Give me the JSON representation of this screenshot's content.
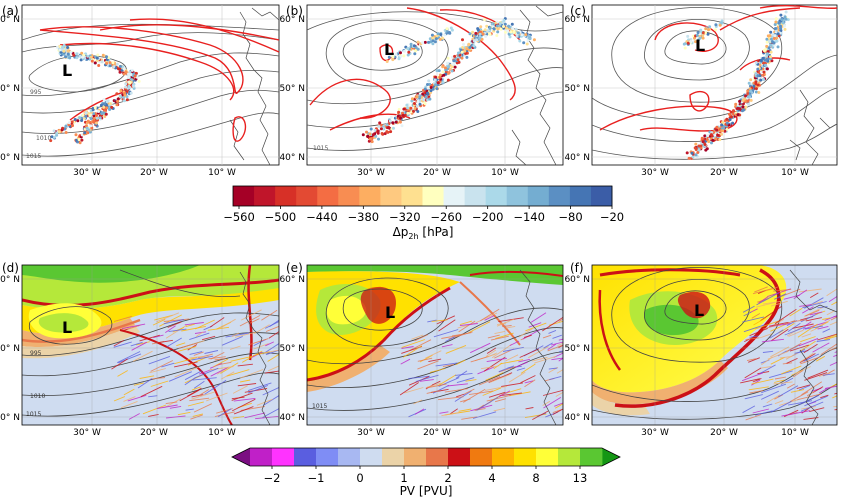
{
  "panels": [
    {
      "label": "(a)",
      "type": "trajectories",
      "low": "L"
    },
    {
      "label": "(b)",
      "type": "trajectories",
      "low": "L"
    },
    {
      "label": "(c)",
      "type": "trajectories",
      "low": "L"
    },
    {
      "label": "(d)",
      "type": "pv",
      "low": "L"
    },
    {
      "label": "(e)",
      "type": "pv",
      "low": "L"
    },
    {
      "label": "(f)",
      "type": "pv",
      "low": "L"
    }
  ],
  "lat_ticks": [
    "60° N",
    "50° N",
    "40° N"
  ],
  "lon_ticks": [
    "30° W",
    "20° W",
    "10° W"
  ],
  "isobar_labels": [
    "995",
    "1010",
    "1015",
    "1000",
    "1005"
  ],
  "colorbar_top": {
    "label": "Δp",
    "label_sub": "2h",
    "label_unit": " [hPa]",
    "ticks": [
      "−560",
      "−500",
      "−440",
      "−380",
      "−320",
      "−260",
      "−200",
      "−140",
      "−80",
      "−20"
    ],
    "colors": [
      "#a50026",
      "#c0152a",
      "#d73027",
      "#e34a33",
      "#f46d43",
      "#f88d52",
      "#fdae61",
      "#fec980",
      "#fee090",
      "#ffffbf",
      "#e6f3f7",
      "#c9e3ee",
      "#abd9e9",
      "#8fc3dd",
      "#74add1",
      "#5b8fc3",
      "#4575b4",
      "#3b5da7"
    ]
  },
  "colorbar_bottom": {
    "label": "PV [PVU]",
    "ticks": [
      "−2",
      "−1",
      "0",
      "1",
      "2",
      "4",
      "8",
      "13"
    ],
    "colors": [
      "#7b0f82",
      "#c020c8",
      "#ff33ff",
      "#5a5ee0",
      "#7f8df5",
      "#a8b8f2",
      "#cfdcf0",
      "#ebd3a8",
      "#f0b070",
      "#e8774a",
      "#cc1016",
      "#f07a10",
      "#ffb400",
      "#ffe100",
      "#ffff38",
      "#b5e83a",
      "#5ac732",
      "#149614"
    ]
  },
  "colors": {
    "isobar": "#555555",
    "red_contour": "#e8201f",
    "coast": "#444444",
    "grid": "#cccccc"
  }
}
